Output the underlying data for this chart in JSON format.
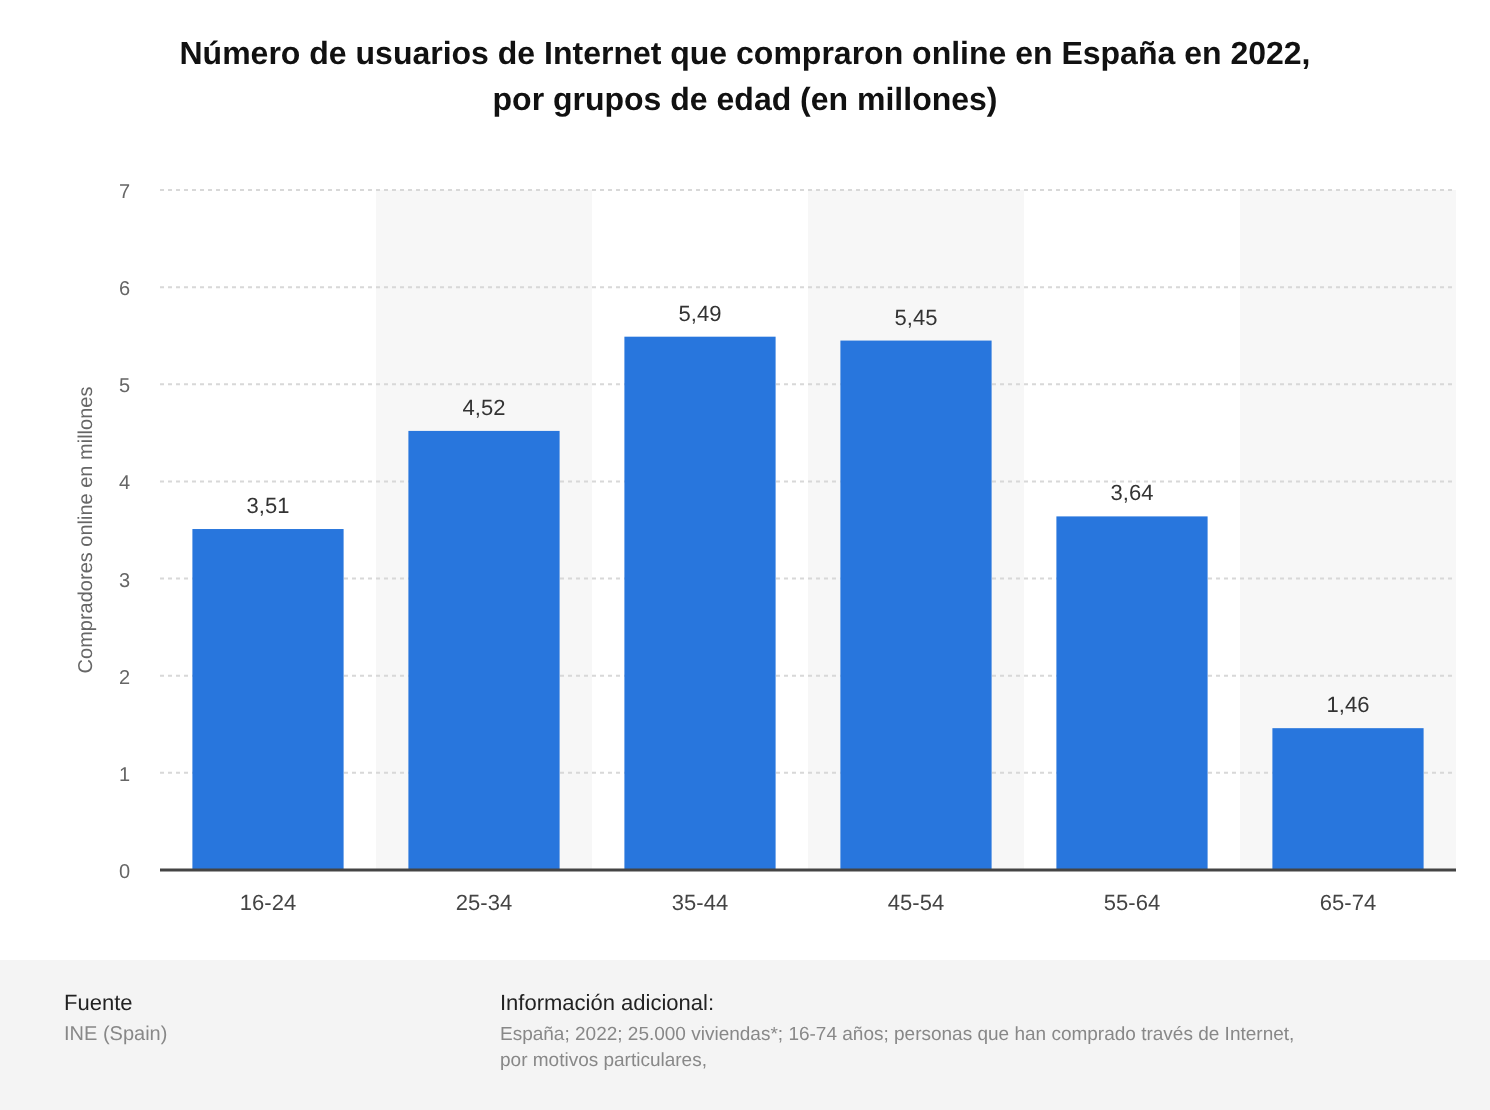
{
  "chart_data": {
    "type": "bar",
    "title": "Número de usuarios de Internet que compraron online en España en 2022, por grupos de edad (en millones)",
    "ylabel": "Compradores online en millones",
    "categories": [
      "16-24",
      "25-34",
      "35-44",
      "45-54",
      "55-64",
      "65-74"
    ],
    "series": [
      {
        "color": "#2876dd",
        "values": [
          3.51,
          4.52,
          5.49,
          5.45,
          3.64,
          1.46
        ],
        "value_labels": [
          "3,51",
          "4,52",
          "5,49",
          "5,45",
          "3,64",
          "1,46"
        ]
      }
    ],
    "ylim": [
      0,
      7
    ],
    "yticks": [
      0,
      1,
      2,
      3,
      4,
      5,
      6,
      7
    ],
    "grid": "y",
    "annotations": [
      "Fuente",
      "INE (Spain)",
      "Información adicional:",
      "España; 2022; 25.000 viviendas*; 16-74 años; personas que han comprado través de Internet, por motivos particulares,"
    ]
  }
}
